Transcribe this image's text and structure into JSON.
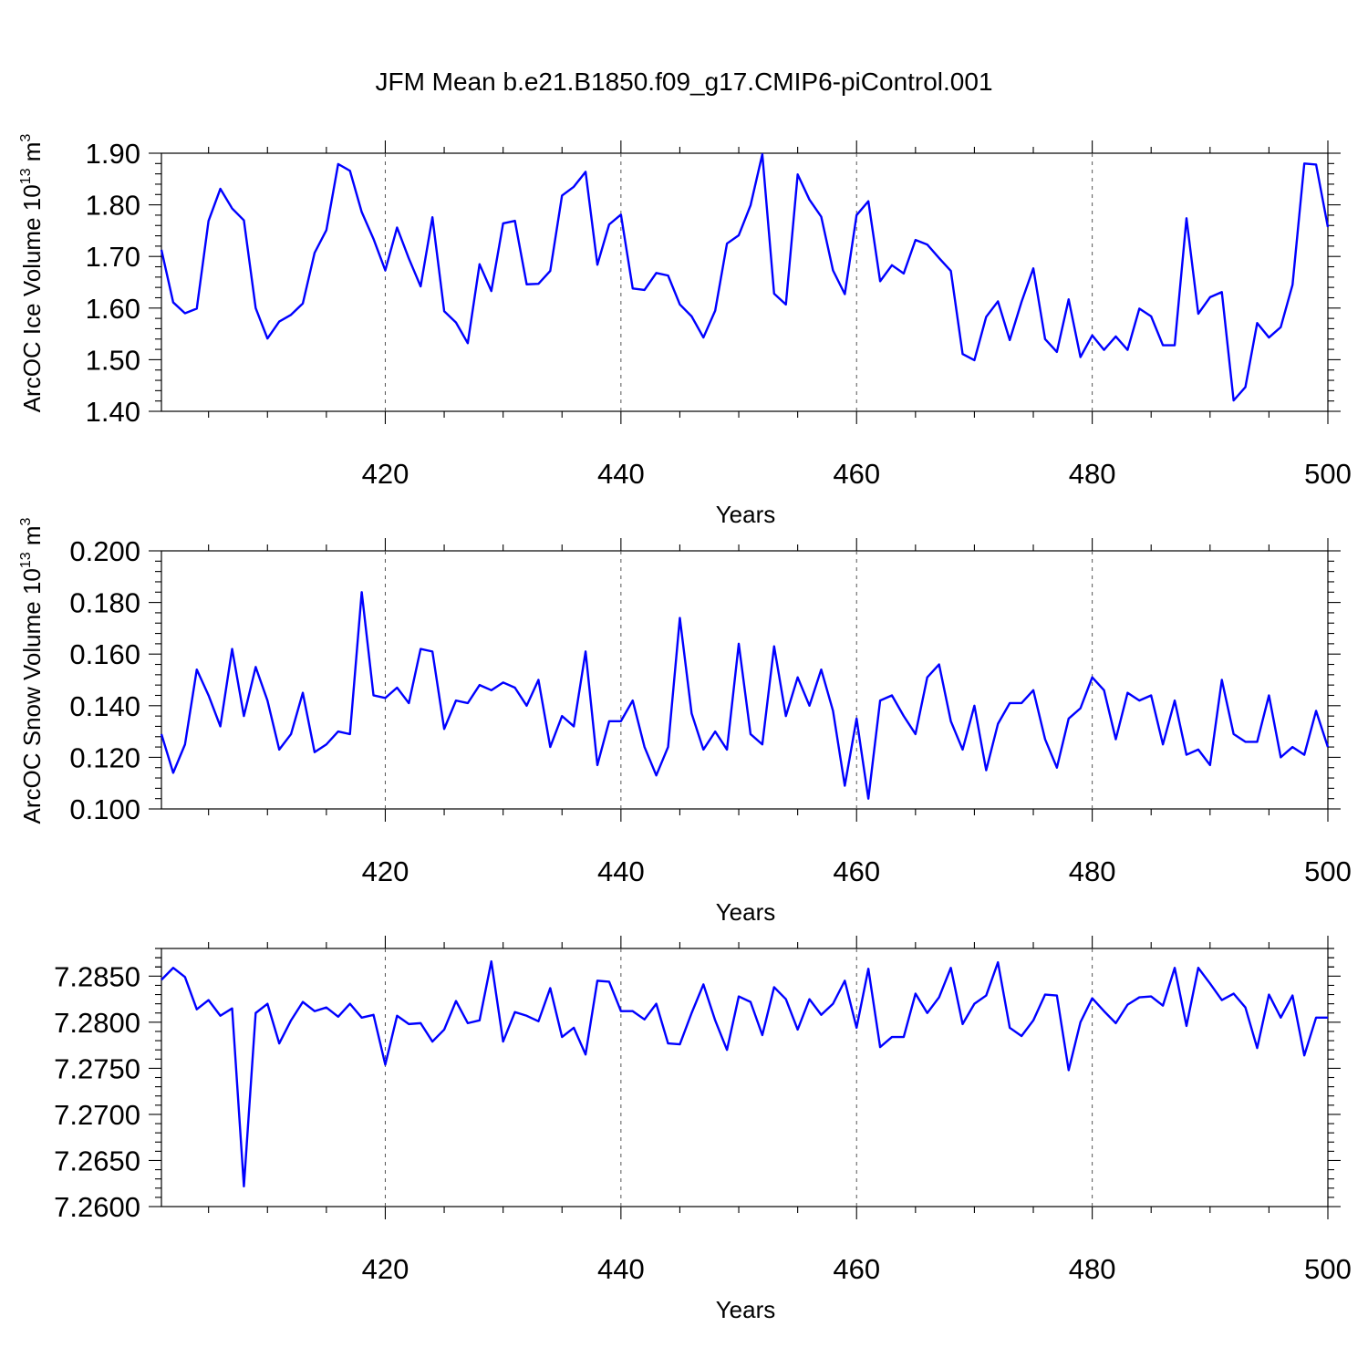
{
  "title": "JFM Mean b.e21.B1850.f09_g17.CMIP6-piControl.001",
  "line_color": "#0000ff",
  "chart_data": [
    {
      "type": "line",
      "ylabel": "ArcOC Ice Volume 10",
      "ylabel_exp": "13",
      "ylabel_unit": " m",
      "ylabel_unit_exp": "3",
      "xlabel": "Years",
      "xlim": [
        401,
        500
      ],
      "ylim": [
        1.4,
        1.9
      ],
      "x_ticks": [
        420,
        440,
        460,
        480,
        500
      ],
      "x_tick_labels": [
        "420",
        "440",
        "460",
        "480",
        "500"
      ],
      "y_ticks": [
        1.4,
        1.5,
        1.6,
        1.7,
        1.8,
        1.9
      ],
      "y_tick_labels": [
        "1.40",
        "1.50",
        "1.60",
        "1.70",
        "1.80",
        "1.90"
      ],
      "x_start": 401,
      "values": [
        1.713,
        1.611,
        1.59,
        1.599,
        1.769,
        1.831,
        1.793,
        1.77,
        1.6,
        1.541,
        1.574,
        1.587,
        1.609,
        1.707,
        1.751,
        1.879,
        1.866,
        1.786,
        1.734,
        1.673,
        1.756,
        1.696,
        1.642,
        1.776,
        1.594,
        1.572,
        1.532,
        1.685,
        1.633,
        1.764,
        1.769,
        1.646,
        1.647,
        1.672,
        1.818,
        1.835,
        1.864,
        1.684,
        1.762,
        1.781,
        1.638,
        1.635,
        1.668,
        1.663,
        1.607,
        1.584,
        1.543,
        1.595,
        1.725,
        1.741,
        1.799,
        1.898,
        1.628,
        1.607,
        1.859,
        1.81,
        1.777,
        1.673,
        1.627,
        1.78,
        1.807,
        1.652,
        1.683,
        1.667,
        1.732,
        1.723,
        1.697,
        1.672,
        1.511,
        1.499,
        1.583,
        1.613,
        1.538,
        1.612,
        1.677,
        1.54,
        1.515,
        1.617,
        1.505,
        1.547,
        1.519,
        1.545,
        1.519,
        1.599,
        1.584,
        1.528,
        1.528,
        1.774,
        1.589,
        1.621,
        1.631,
        1.421,
        1.447,
        1.571,
        1.543,
        1.563,
        1.645,
        1.88,
        1.878,
        1.757
      ]
    },
    {
      "type": "line",
      "ylabel": "ArcOC Snow Volume 10",
      "ylabel_exp": "13",
      "ylabel_unit": " m",
      "ylabel_unit_exp": "3",
      "xlabel": "Years",
      "xlim": [
        401,
        500
      ],
      "ylim": [
        0.1,
        0.2
      ],
      "x_ticks": [
        420,
        440,
        460,
        480,
        500
      ],
      "x_tick_labels": [
        "420",
        "440",
        "460",
        "480",
        "500"
      ],
      "y_ticks": [
        0.1,
        0.12,
        0.14,
        0.16,
        0.18,
        0.2
      ],
      "y_tick_labels": [
        "0.100",
        "0.120",
        "0.140",
        "0.160",
        "0.180",
        "0.200"
      ],
      "x_start": 401,
      "values": [
        0.129,
        0.114,
        0.125,
        0.154,
        0.144,
        0.132,
        0.162,
        0.136,
        0.155,
        0.142,
        0.123,
        0.129,
        0.145,
        0.122,
        0.125,
        0.13,
        0.129,
        0.184,
        0.144,
        0.143,
        0.147,
        0.141,
        0.162,
        0.161,
        0.131,
        0.142,
        0.141,
        0.148,
        0.146,
        0.149,
        0.147,
        0.14,
        0.15,
        0.124,
        0.136,
        0.132,
        0.161,
        0.117,
        0.134,
        0.134,
        0.142,
        0.124,
        0.113,
        0.124,
        0.174,
        0.137,
        0.123,
        0.13,
        0.123,
        0.164,
        0.129,
        0.125,
        0.163,
        0.136,
        0.151,
        0.14,
        0.154,
        0.138,
        0.109,
        0.135,
        0.104,
        0.142,
        0.144,
        0.136,
        0.129,
        0.151,
        0.156,
        0.134,
        0.123,
        0.14,
        0.115,
        0.133,
        0.141,
        0.141,
        0.146,
        0.127,
        0.116,
        0.135,
        0.139,
        0.151,
        0.146,
        0.127,
        0.145,
        0.142,
        0.144,
        0.125,
        0.142,
        0.121,
        0.123,
        0.117,
        0.15,
        0.129,
        0.126,
        0.126,
        0.144,
        0.12,
        0.124,
        0.121,
        0.138,
        0.124
      ]
    },
    {
      "type": "line",
      "ylabel": "",
      "xlabel": "Years",
      "xlim": [
        401,
        500
      ],
      "ylim": [
        7.26,
        7.288
      ],
      "x_ticks": [
        420,
        440,
        460,
        480,
        500
      ],
      "x_tick_labels": [
        "420",
        "440",
        "460",
        "480",
        "500"
      ],
      "y_ticks": [
        7.26,
        7.265,
        7.27,
        7.275,
        7.28,
        7.285
      ],
      "y_tick_labels": [
        "7.2600",
        "7.2650",
        "7.2700",
        "7.2750",
        "7.2800",
        "7.2850"
      ],
      "x_start": 401,
      "values": [
        7.2846,
        7.2859,
        7.2849,
        7.2814,
        7.2824,
        7.2807,
        7.2815,
        7.2622,
        7.281,
        7.282,
        7.2777,
        7.2802,
        7.2822,
        7.2812,
        7.2816,
        7.2806,
        7.282,
        7.2805,
        7.2808,
        7.2754,
        7.2807,
        7.2798,
        7.2799,
        7.2779,
        7.2792,
        7.2823,
        7.2799,
        7.2802,
        7.2866,
        7.2779,
        7.2811,
        7.2807,
        7.2801,
        7.2837,
        7.2784,
        7.2794,
        7.2765,
        7.2845,
        7.2844,
        7.2812,
        7.2812,
        7.2803,
        7.282,
        7.2777,
        7.2776,
        7.281,
        7.2841,
        7.2802,
        7.277,
        7.2828,
        7.2822,
        7.2786,
        7.2838,
        7.2825,
        7.2792,
        7.2825,
        7.2808,
        7.282,
        7.2845,
        7.2794,
        7.2858,
        7.2773,
        7.2784,
        7.2784,
        7.2831,
        7.281,
        7.2827,
        7.2859,
        7.2798,
        7.282,
        7.2829,
        7.2865,
        7.2794,
        7.2785,
        7.2802,
        7.283,
        7.2829,
        7.2748,
        7.28,
        7.2826,
        7.2812,
        7.2799,
        7.2819,
        7.2827,
        7.2828,
        7.2818,
        7.2859,
        7.2796,
        7.2859,
        7.2842,
        7.2824,
        7.2831,
        7.2816,
        7.2772,
        7.283,
        7.2805,
        7.2829,
        7.2764,
        7.2805,
        7.2805
      ]
    }
  ]
}
